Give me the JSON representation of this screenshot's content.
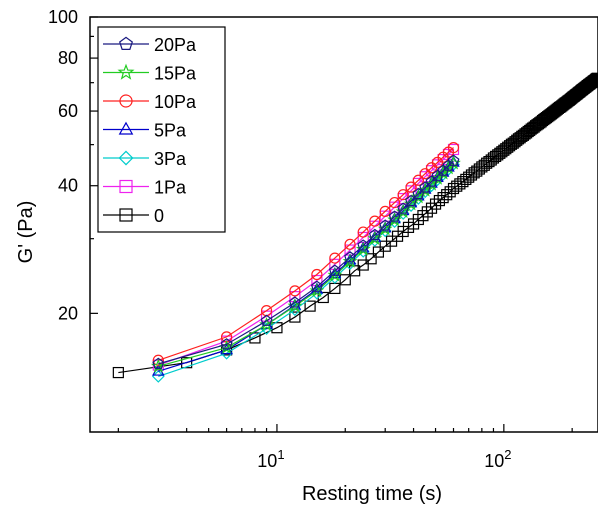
{
  "chart_data": {
    "type": "line",
    "xlabel": "Resting time (s)",
    "ylabel": "G' (Pa)",
    "x_scale": "log",
    "y_scale": "log",
    "xlim": [
      1.5,
      260
    ],
    "ylim": [
      10.5,
      100
    ],
    "x_ticks": [
      {
        "value": 10,
        "base": "10",
        "exp": "1"
      },
      {
        "value": 100,
        "base": "10",
        "exp": "2"
      }
    ],
    "y_ticks": [
      {
        "value": 20,
        "label": "20"
      },
      {
        "value": 40,
        "label": "40"
      },
      {
        "value": 60,
        "label": "60"
      },
      {
        "value": 80,
        "label": "80"
      },
      {
        "value": 100,
        "label": "100"
      }
    ],
    "grid": false,
    "legend_position": "top-left",
    "series": [
      {
        "name": "20Pa",
        "marker": "pentagon",
        "color": "#1a1a80",
        "x": [
          3,
          6,
          9,
          12,
          15,
          18,
          21,
          24,
          27,
          30,
          33,
          36,
          39,
          42,
          45,
          48,
          51,
          54,
          57,
          60
        ],
        "y": [
          15.2,
          16.9,
          19.2,
          21.2,
          23.1,
          25.2,
          27.1,
          28.9,
          30.6,
          32.2,
          33.8,
          35.3,
          36.8,
          38.2,
          39.6,
          40.9,
          42.2,
          43.4,
          44.6,
          45.8
        ]
      },
      {
        "name": "15Pa",
        "marker": "star",
        "color": "#22cc22",
        "x": [
          3,
          6,
          9,
          12,
          15,
          18,
          21,
          24,
          27,
          30,
          33,
          36,
          39,
          42,
          45,
          48,
          51,
          54,
          57,
          60
        ],
        "y": [
          15.0,
          16.6,
          18.8,
          20.8,
          22.6,
          24.6,
          26.5,
          28.3,
          30.0,
          31.6,
          33.2,
          34.7,
          36.2,
          37.6,
          39.0,
          40.3,
          41.6,
          42.8,
          44.0,
          45.2
        ]
      },
      {
        "name": "10Pa",
        "marker": "circle",
        "color": "#ff2020",
        "x": [
          3,
          6,
          9,
          12,
          15,
          18,
          21,
          24,
          27,
          30,
          33,
          36,
          39,
          42,
          45,
          48,
          51,
          54,
          57,
          60
        ],
        "y": [
          15.5,
          17.6,
          20.3,
          22.6,
          24.7,
          27.0,
          29.1,
          31.1,
          33.0,
          34.8,
          36.5,
          38.1,
          39.7,
          41.2,
          42.7,
          44.1,
          45.4,
          46.7,
          48.0,
          49.2
        ]
      },
      {
        "name": "5Pa",
        "marker": "triangle",
        "color": "#0000cc",
        "x": [
          3,
          6,
          9,
          12,
          15,
          18,
          21,
          24,
          27,
          30,
          33,
          36,
          39,
          42,
          45,
          48,
          51,
          54,
          57,
          60
        ],
        "y": [
          14.6,
          16.4,
          18.8,
          20.9,
          22.8,
          24.8,
          26.7,
          28.5,
          30.2,
          31.8,
          33.4,
          34.9,
          36.4,
          37.8,
          39.2,
          40.5,
          41.8,
          43.0,
          44.2,
          45.4
        ]
      },
      {
        "name": "3Pa",
        "marker": "diamond",
        "color": "#00cccc",
        "x": [
          3,
          6,
          9,
          12,
          15,
          18,
          21,
          24,
          27,
          30,
          33,
          36,
          39,
          42,
          45,
          48,
          51,
          54,
          57,
          60
        ],
        "y": [
          14.2,
          16.1,
          18.4,
          20.4,
          22.3,
          24.3,
          26.2,
          28.0,
          29.7,
          31.3,
          32.9,
          34.4,
          35.9,
          37.3,
          38.7,
          40.0,
          41.3,
          42.5,
          43.7,
          44.9
        ]
      },
      {
        "name": "1Pa",
        "marker": "square",
        "color": "#ee22ee",
        "x": [
          3,
          6,
          9,
          12,
          15,
          18,
          21,
          24,
          27,
          30,
          33,
          36,
          39,
          42,
          45,
          48,
          51,
          54,
          57,
          60
        ],
        "y": [
          15.1,
          17.2,
          19.7,
          21.9,
          23.9,
          26.1,
          28.2,
          30.2,
          32.1,
          33.9,
          35.6,
          37.3,
          38.9,
          40.5,
          42.0,
          43.4,
          44.8,
          46.1,
          47.4,
          48.7
        ]
      },
      {
        "name": "0",
        "marker": "square",
        "color": "#000000",
        "x": [
          2,
          4,
          6,
          8,
          10,
          12,
          14,
          16,
          18,
          20,
          22,
          24,
          26,
          28,
          30,
          32,
          34,
          36,
          38,
          40,
          42,
          44,
          46,
          48,
          50,
          52,
          54,
          56,
          58,
          60,
          62,
          64,
          66,
          68,
          70,
          72,
          74,
          76,
          78,
          80,
          82,
          84,
          86,
          88,
          90,
          92,
          94,
          96,
          98,
          100,
          102,
          104,
          106,
          108,
          110,
          112,
          114,
          116,
          118,
          120,
          122,
          124,
          126,
          128,
          130,
          132,
          134,
          136,
          138,
          140,
          142,
          144,
          146,
          148,
          150,
          152,
          154,
          156,
          158,
          160,
          162,
          164,
          166,
          168,
          170,
          172,
          174,
          176,
          178,
          180,
          182,
          184,
          186,
          188,
          190,
          192,
          194,
          196,
          198,
          200,
          202,
          204,
          206,
          208,
          210,
          212,
          214,
          216,
          218,
          220,
          222,
          224,
          226,
          228,
          230,
          232,
          234,
          236,
          238,
          240,
          242,
          244,
          246,
          248,
          250,
          252,
          254,
          256,
          258
        ],
        "y": [
          14.5,
          15.3,
          16.4,
          17.5,
          18.5,
          19.6,
          20.8,
          21.8,
          22.9,
          24.0,
          25.2,
          26.0,
          26.9,
          27.9,
          28.8,
          29.6,
          30.4,
          31.2,
          31.9,
          32.5,
          33.3,
          34.0,
          34.7,
          35.4,
          36.2,
          36.9,
          37.5,
          38.1,
          38.7,
          39.4,
          39.9,
          40.4,
          40.9,
          41.4,
          41.9,
          42.4,
          42.9,
          43.3,
          43.8,
          44.3,
          44.7,
          45.2,
          45.6,
          46.0,
          46.5,
          46.9,
          47.3,
          47.7,
          48.1,
          48.5,
          48.9,
          49.3,
          49.7,
          50.1,
          50.4,
          50.8,
          51.2,
          51.6,
          51.9,
          52.3,
          52.6,
          53.0,
          53.3,
          53.7,
          54.0,
          54.4,
          54.7,
          55.0,
          55.4,
          55.7,
          56.0,
          56.3,
          56.6,
          57.0,
          57.3,
          57.6,
          57.9,
          58.2,
          58.5,
          58.8,
          59.1,
          59.4,
          59.7,
          60.0,
          60.3,
          60.6,
          60.9,
          61.2,
          61.4,
          61.7,
          62.0,
          62.3,
          62.6,
          62.8,
          63.1,
          63.4,
          63.6,
          63.9,
          64.2,
          64.5,
          64.8,
          65.0,
          65.3,
          65.6,
          65.8,
          66.1,
          66.4,
          66.6,
          66.9,
          67.2,
          67.4,
          67.7,
          67.9,
          68.2,
          68.4,
          68.7,
          68.9,
          69.2,
          69.4,
          69.6,
          69.9,
          70.1,
          70.3,
          70.6,
          70.8,
          71.0,
          71.3,
          71.5,
          71.7
        ]
      }
    ]
  }
}
